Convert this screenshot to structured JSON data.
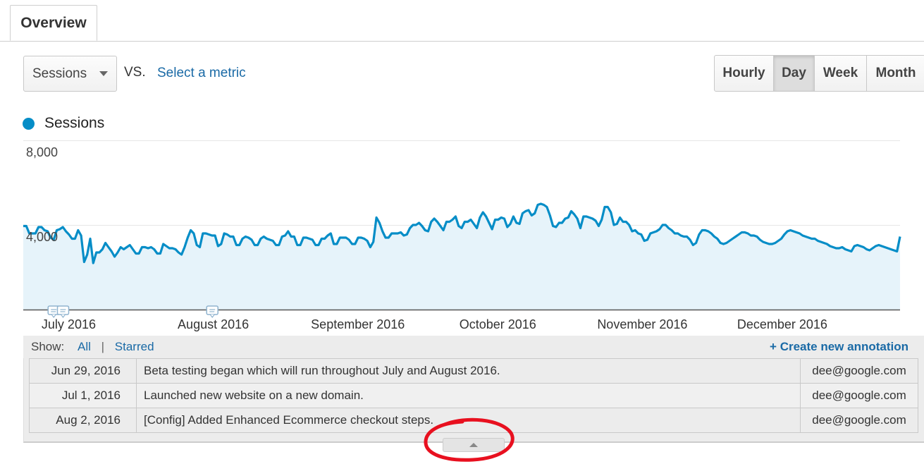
{
  "tabs": [
    {
      "label": "Overview"
    }
  ],
  "metric_selector": {
    "value": "Sessions",
    "vs_label": "VS.",
    "select_metric_label": "Select a metric"
  },
  "granularity": {
    "options": [
      "Hourly",
      "Day",
      "Week",
      "Month"
    ],
    "selected": "Day"
  },
  "legend": {
    "series_name": "Sessions",
    "color": "#058dc7"
  },
  "chart_data": {
    "type": "area",
    "title": "",
    "series": [
      {
        "name": "Sessions",
        "color": "#058dc7",
        "values": [
          3950,
          3950,
          3600,
          3600,
          3600,
          3900,
          3900,
          3750,
          3700,
          3400,
          3300,
          3750,
          3800,
          3900,
          3700,
          3550,
          3350,
          3350,
          3750,
          3500,
          2250,
          2600,
          3350,
          2200,
          2700,
          2700,
          2850,
          3150,
          2950,
          2750,
          2500,
          2700,
          2950,
          2850,
          2950,
          3050,
          2850,
          2650,
          2650,
          2950,
          2950,
          2900,
          2950,
          2850,
          2650,
          2650,
          3100,
          3000,
          2900,
          2900,
          2850,
          2700,
          2600,
          2950,
          3400,
          3750,
          3600,
          3050,
          2950,
          3600,
          3600,
          3550,
          3500,
          3500,
          3000,
          3100,
          3600,
          3550,
          3450,
          3450,
          3050,
          3050,
          3350,
          3450,
          3400,
          3300,
          3050,
          3050,
          3350,
          3450,
          3350,
          3300,
          3250,
          3050,
          3050,
          3450,
          3500,
          3700,
          3450,
          3450,
          3050,
          3050,
          3400,
          3400,
          3350,
          3300,
          3050,
          3050,
          3350,
          3350,
          3500,
          3600,
          3100,
          3100,
          3400,
          3400,
          3400,
          3300,
          3100,
          3100,
          3400,
          3400,
          3350,
          3250,
          2950,
          3200,
          4350,
          4100,
          3700,
          3400,
          3400,
          3600,
          3600,
          3600,
          3650,
          3500,
          3550,
          3850,
          4000,
          4000,
          4100,
          3950,
          3750,
          3700,
          4150,
          4300,
          4150,
          3950,
          3750,
          4150,
          4150,
          4250,
          4400,
          3950,
          3850,
          4150,
          4150,
          4250,
          4050,
          3850,
          4350,
          4600,
          4400,
          4100,
          3800,
          4250,
          4250,
          4350,
          4300,
          3900,
          4050,
          4400,
          4100,
          4050,
          4550,
          4650,
          4700,
          4450,
          4550,
          4950,
          5000,
          4950,
          4850,
          4450,
          3950,
          3900,
          4100,
          4100,
          4300,
          4350,
          4650,
          4500,
          4300,
          3850,
          4400,
          4400,
          4350,
          4300,
          4200,
          3950,
          4250,
          4850,
          4850,
          4600,
          4000,
          4050,
          4350,
          4150,
          4150,
          4000,
          3700,
          3750,
          3600,
          3550,
          3250,
          3300,
          3600,
          3650,
          3700,
          3800,
          4000,
          4000,
          3850,
          3750,
          3600,
          3600,
          3500,
          3450,
          3450,
          3300,
          3050,
          3150,
          3550,
          3750,
          3750,
          3700,
          3600,
          3450,
          3350,
          3150,
          3100,
          3150,
          3250,
          3350,
          3450,
          3550,
          3650,
          3650,
          3600,
          3500,
          3500,
          3450,
          3300,
          3200,
          3150,
          3100,
          3100,
          3150,
          3250,
          3350,
          3550,
          3700,
          3750,
          3700,
          3650,
          3600,
          3500,
          3450,
          3400,
          3350,
          3350,
          3250,
          3200,
          3150,
          3100,
          3000,
          2950,
          2900,
          2900,
          2950,
          2850,
          2800,
          2750,
          3000,
          3050,
          3000,
          2950,
          2850,
          2800,
          2900,
          3000,
          3050,
          3000,
          2950,
          2900,
          2850,
          2800,
          2750,
          3450
        ]
      }
    ],
    "x_labels": [
      "July 2016",
      "August 2016",
      "September 2016",
      "October 2016",
      "November 2016",
      "December 2016"
    ],
    "y_ticks": [
      "8,000",
      "4,000"
    ],
    "ylim": [
      0,
      8000
    ],
    "grid": true,
    "annotation_markers": [
      "Jun 29, 2016",
      "Jul 1, 2016",
      "Aug 2, 2016"
    ]
  },
  "annotations": {
    "show_label": "Show:",
    "filter_all": "All",
    "filter_separator": "|",
    "filter_starred": "Starred",
    "create_label": "+ Create new annotation",
    "rows": [
      {
        "date": "Jun 29, 2016",
        "text": "Beta testing began which will run throughout July and August 2016.",
        "user": "dee@google.com"
      },
      {
        "date": "Jul 1, 2016",
        "text": "Launched new website on a new domain.",
        "user": "dee@google.com"
      },
      {
        "date": "Aug 2, 2016",
        "text": "[Config] Added Enhanced Ecommerce checkout steps.",
        "user": "dee@google.com"
      }
    ]
  },
  "highlight_color": "#e8101f"
}
